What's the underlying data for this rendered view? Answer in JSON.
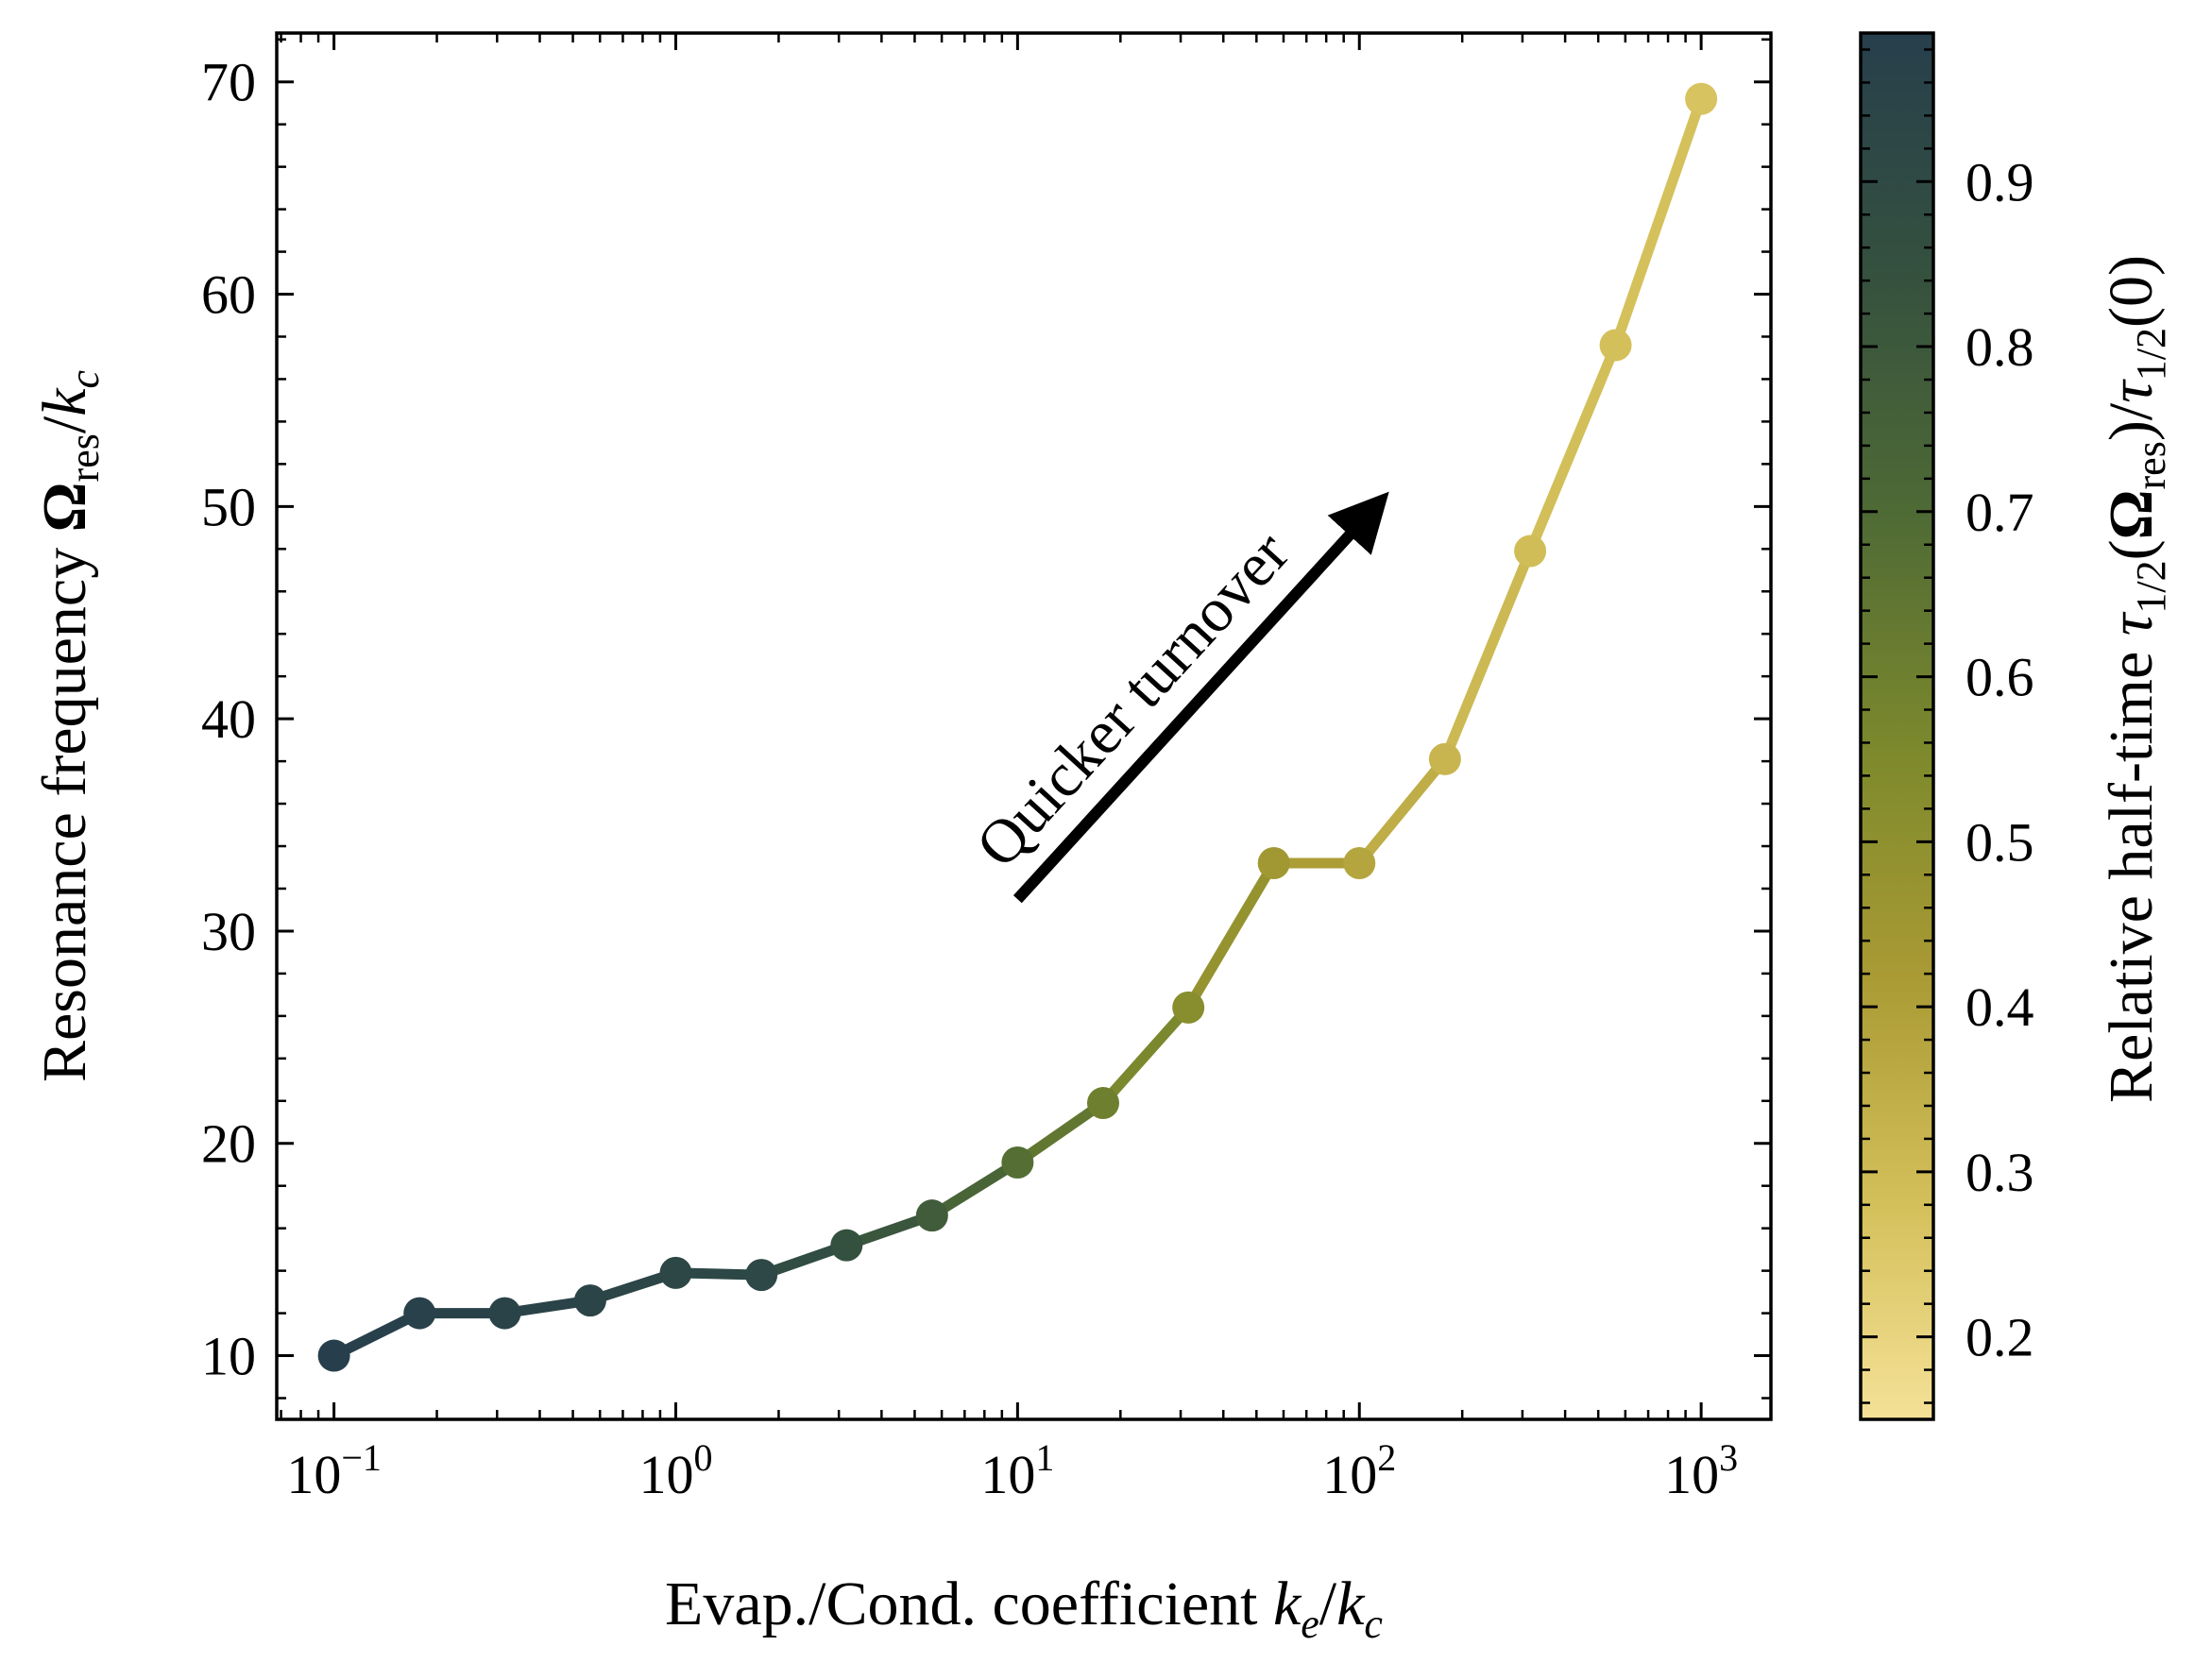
{
  "chart_data": {
    "type": "line",
    "xscale": "log",
    "xlim": [
      0.068,
      1600
    ],
    "ylim": [
      7,
      72.3
    ],
    "x": [
      0.1,
      0.178,
      0.316,
      0.562,
      1.0,
      1.78,
      3.16,
      5.62,
      10.0,
      17.8,
      31.6,
      56.2,
      100,
      178,
      316,
      562,
      1000
    ],
    "y": [
      10.0,
      12.0,
      12.0,
      12.6,
      13.9,
      13.8,
      15.2,
      16.6,
      19.1,
      21.9,
      26.4,
      33.2,
      33.2,
      38.1,
      47.9,
      57.6,
      69.2
    ],
    "color_values": [
      0.99,
      0.97,
      0.96,
      0.95,
      0.93,
      0.92,
      0.85,
      0.78,
      0.68,
      0.6,
      0.52,
      0.44,
      0.38,
      0.32,
      0.29,
      0.28,
      0.27
    ],
    "x_ticks": [
      {
        "value": 0.1,
        "base": "10",
        "exp": "−1"
      },
      {
        "value": 1,
        "base": "10",
        "exp": "0"
      },
      {
        "value": 10,
        "base": "10",
        "exp": "1"
      },
      {
        "value": 100,
        "base": "10",
        "exp": "2"
      },
      {
        "value": 1000,
        "base": "10",
        "exp": "3"
      }
    ],
    "y_ticks": [
      10,
      20,
      30,
      40,
      50,
      60,
      70
    ],
    "xlabel": {
      "text": "Evap./Cond. coefficient ",
      "k1": "k",
      "k1_sub": "e",
      "sep": "/",
      "k2": "k",
      "k2_sub": "c"
    },
    "ylabel": {
      "text": "Resonance frequency ",
      "omega": "Ω",
      "omega_sub": "res",
      "sep": "/",
      "k": "k",
      "k_sub": "c"
    },
    "annotation": {
      "text": "Quicker turnover",
      "from": {
        "x": 10,
        "y": 31.5
      },
      "to": {
        "x": 120,
        "y": 50.5
      }
    },
    "colorbar": {
      "range": [
        0.15,
        0.99
      ],
      "ticks": [
        0.2,
        0.3,
        0.4,
        0.5,
        0.6,
        0.7,
        0.8,
        0.9
      ],
      "tick_labels": [
        "0.2",
        "0.3",
        "0.4",
        "0.5",
        "0.6",
        "0.7",
        "0.8",
        "0.9"
      ],
      "label": {
        "text": "Relative half-time ",
        "tau": "τ",
        "tau_sub": "1/2",
        "open": "(",
        "omega": "Ω",
        "omega_sub": "res",
        "close": ")/",
        "tau2": "τ",
        "tau2_sub": "1/2",
        "tail": "(0)"
      },
      "colormap": [
        {
          "v": 0.15,
          "color": "#f5e197"
        },
        {
          "v": 0.28,
          "color": "#d4c05a"
        },
        {
          "v": 0.42,
          "color": "#a99a34"
        },
        {
          "v": 0.55,
          "color": "#7e8a2c"
        },
        {
          "v": 0.7,
          "color": "#4e6a35"
        },
        {
          "v": 0.85,
          "color": "#34503f"
        },
        {
          "v": 0.99,
          "color": "#273f4c"
        }
      ]
    }
  }
}
